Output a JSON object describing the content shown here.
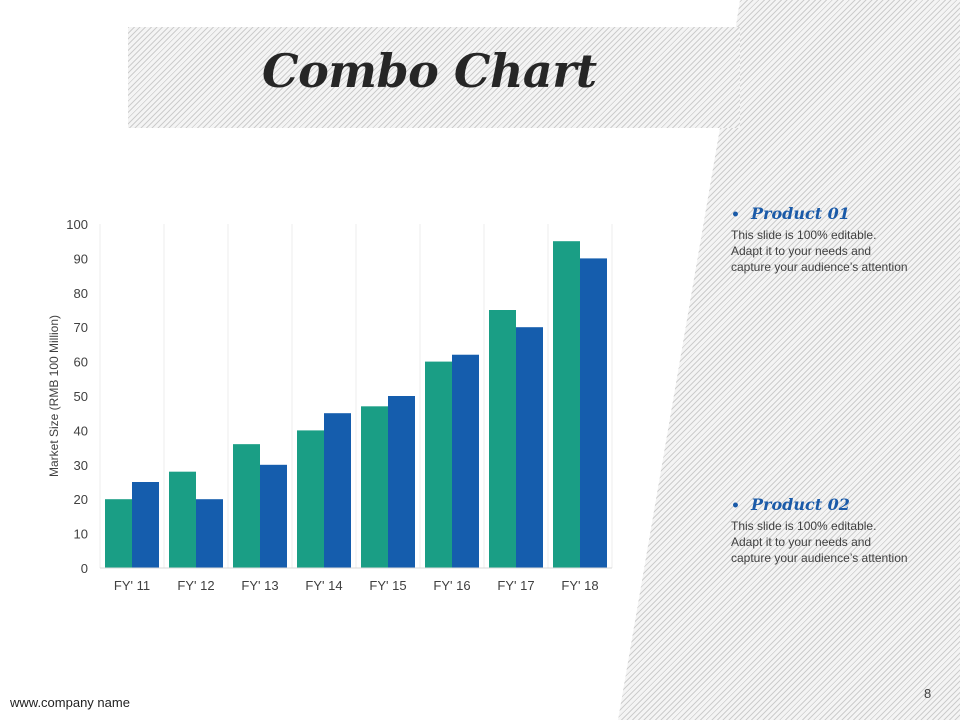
{
  "slide": {
    "title": "Combo Chart",
    "footer_url": "www.company name",
    "page_number": "8"
  },
  "legend": [
    {
      "bullet": "•",
      "name": "Product 01",
      "desc": [
        "This slide is 100% editable.",
        "Adapt it to your needs and",
        "capture your audience’s attention"
      ]
    },
    {
      "bullet": "•",
      "name": "Product 02",
      "desc": [
        "This slide is 100% editable.",
        "Adapt it to your needs and",
        "capture your audience’s attention"
      ]
    }
  ],
  "colors": {
    "product_01": "#1a9e85",
    "product_02": "#155dad",
    "title": "#262626",
    "legend_heading": "#1a5aa8"
  },
  "chart_data": {
    "type": "bar",
    "title": "",
    "xlabel": "",
    "ylabel": "Market Size (RMB 100 Million)",
    "categories": [
      "FY' 11",
      "FY' 12",
      "FY' 13",
      "FY' 14",
      "FY' 15",
      "FY' 16",
      "FY' 17",
      "FY' 18"
    ],
    "series": [
      {
        "values": [
          20,
          28,
          36,
          40,
          47,
          60,
          75,
          95
        ],
        "color": "#1a9e85"
      },
      {
        "values": [
          25,
          20,
          30,
          45,
          50,
          62,
          70,
          90
        ],
        "color": "#155dad"
      }
    ],
    "ylim": [
      0,
      100
    ],
    "yticks": [
      0,
      10,
      20,
      30,
      40,
      50,
      60,
      70,
      80,
      90,
      100
    ],
    "grid": "vertical lines between categories",
    "legend": "none"
  }
}
